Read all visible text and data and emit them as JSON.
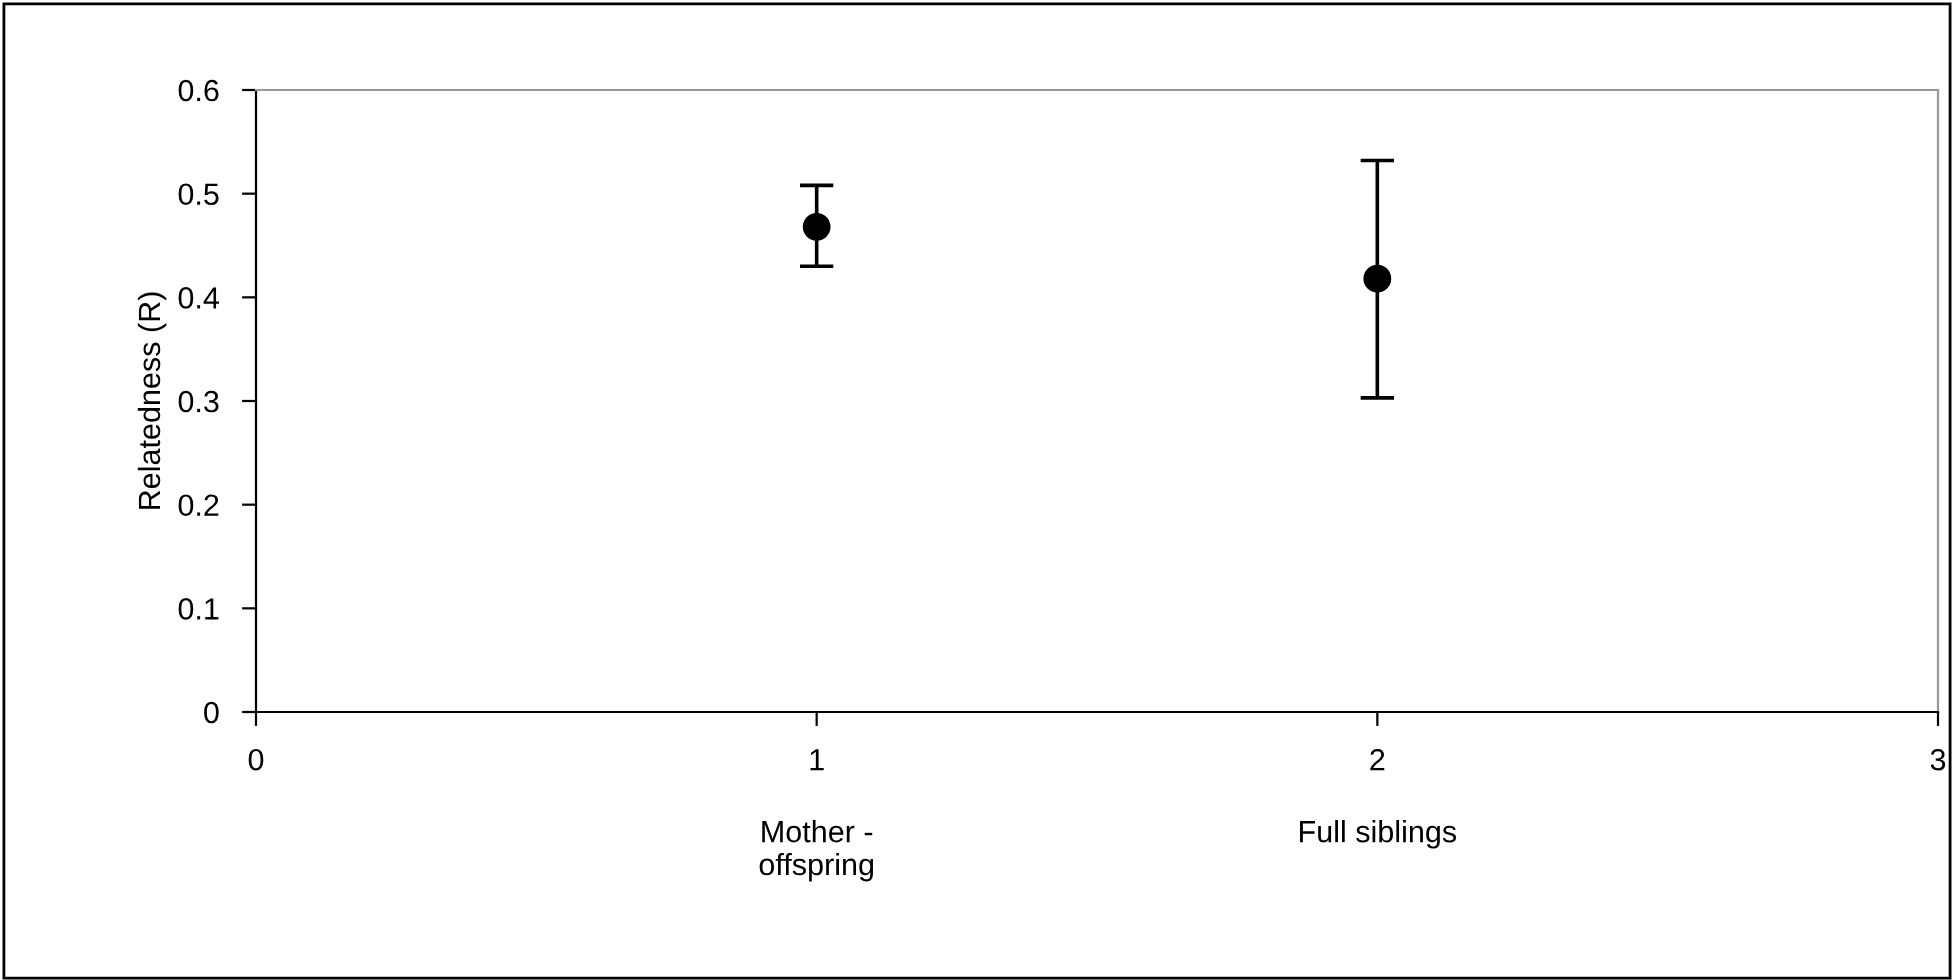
{
  "chart_data": {
    "type": "scatter",
    "ylabel": "Relatedness (R)",
    "x": [
      1,
      2
    ],
    "values": [
      0.468,
      0.418
    ],
    "errors": [
      [
        0.43,
        0.508
      ],
      [
        0.303,
        0.532
      ]
    ],
    "color": "#000000",
    "marker": "circle",
    "xlim": [
      0,
      3
    ],
    "xticks": [
      0,
      1,
      2,
      3
    ],
    "ylim": [
      0,
      0.6
    ],
    "yticks": [
      0,
      0.1,
      0.2,
      0.3,
      0.4,
      0.5,
      0.6
    ],
    "grid": false,
    "legend": false,
    "annotations": [
      "Mother -\noffspring",
      "Full siblings"
    ]
  }
}
